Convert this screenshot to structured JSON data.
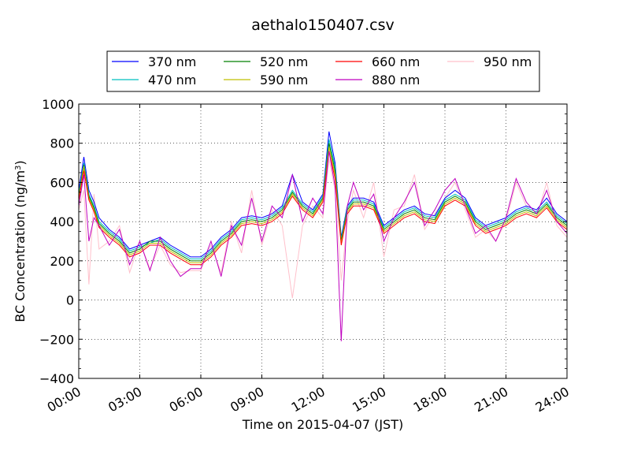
{
  "chart_data": {
    "type": "line",
    "title": "aethalo150407.csv",
    "xlabel": "Time on 2015-04-07 (JST)",
    "ylabel": "BC Concentration (ng/m",
    "ylabel_superscript": "3",
    "ylabel_suffix": ")",
    "xlim": [
      "00:00",
      "24:00"
    ],
    "ylim": [
      -400,
      1000
    ],
    "x_ticks": [
      "00:00",
      "03:00",
      "06:00",
      "09:00",
      "12:00",
      "15:00",
      "18:00",
      "21:00",
      "24:00"
    ],
    "y_ticks": [
      -400,
      -200,
      0,
      200,
      400,
      600,
      800,
      1000
    ],
    "y_tick_labels": [
      "−400",
      "−200",
      "0",
      "200",
      "400",
      "600",
      "800",
      "1000"
    ],
    "grid": true,
    "legend_placement": "top-center, above plot",
    "x_hours": [
      0,
      0.25,
      0.5,
      0.75,
      1.0,
      1.5,
      2.0,
      2.5,
      3.0,
      3.5,
      4.0,
      4.5,
      5.0,
      5.5,
      6.0,
      6.5,
      7.0,
      7.5,
      8.0,
      8.5,
      9.0,
      9.5,
      10.0,
      10.5,
      11.0,
      11.5,
      12.0,
      12.3,
      12.6,
      12.9,
      13.2,
      13.5,
      14.0,
      14.5,
      15.0,
      15.5,
      16.0,
      16.5,
      17.0,
      17.5,
      18.0,
      18.5,
      19.0,
      19.5,
      20.0,
      20.5,
      21.0,
      21.5,
      22.0,
      22.5,
      23.0,
      23.5,
      24.0
    ],
    "series": [
      {
        "name": "370 nm",
        "color": "#0000ff",
        "values": [
          560,
          730,
          560,
          500,
          420,
          360,
          320,
          260,
          280,
          300,
          320,
          280,
          250,
          220,
          220,
          260,
          320,
          360,
          420,
          430,
          420,
          440,
          480,
          640,
          500,
          460,
          540,
          860,
          700,
          320,
          480,
          520,
          520,
          500,
          380,
          420,
          460,
          480,
          440,
          430,
          520,
          560,
          520,
          420,
          380,
          400,
          420,
          460,
          480,
          460,
          520,
          440,
          400
        ]
      },
      {
        "name": "470 nm",
        "color": "#00bfbf",
        "values": [
          540,
          700,
          540,
          480,
          400,
          350,
          310,
          250,
          270,
          290,
          310,
          270,
          240,
          210,
          210,
          250,
          310,
          350,
          410,
          420,
          410,
          430,
          470,
          560,
          490,
          450,
          530,
          820,
          680,
          310,
          470,
          510,
          510,
          490,
          370,
          410,
          450,
          470,
          430,
          420,
          510,
          540,
          510,
          410,
          370,
          390,
          410,
          450,
          470,
          450,
          500,
          430,
          390
        ]
      },
      {
        "name": "520 nm",
        "color": "#008000",
        "values": [
          530,
          690,
          530,
          470,
          390,
          340,
          300,
          240,
          260,
          300,
          300,
          260,
          230,
          200,
          200,
          240,
          300,
          340,
          400,
          410,
          400,
          420,
          460,
          550,
          480,
          440,
          520,
          800,
          660,
          300,
          460,
          500,
          500,
          480,
          360,
          400,
          440,
          460,
          420,
          410,
          500,
          530,
          500,
          400,
          360,
          380,
          400,
          440,
          460,
          440,
          490,
          420,
          380
        ]
      },
      {
        "name": "590 nm",
        "color": "#bfbf00",
        "values": [
          520,
          680,
          520,
          460,
          380,
          330,
          290,
          230,
          250,
          290,
          290,
          250,
          220,
          190,
          190,
          230,
          290,
          330,
          390,
          400,
          390,
          410,
          450,
          540,
          470,
          430,
          510,
          780,
          640,
          290,
          450,
          490,
          490,
          470,
          350,
          390,
          430,
          450,
          410,
          400,
          490,
          520,
          490,
          390,
          350,
          370,
          390,
          430,
          450,
          430,
          480,
          410,
          370
        ]
      },
      {
        "name": "660 nm",
        "color": "#ff0000",
        "values": [
          510,
          660,
          510,
          450,
          370,
          320,
          280,
          220,
          240,
          280,
          280,
          240,
          210,
          180,
          180,
          220,
          280,
          320,
          380,
          390,
          380,
          400,
          440,
          530,
          460,
          420,
          500,
          760,
          620,
          280,
          440,
          480,
          480,
          460,
          340,
          380,
          420,
          440,
          400,
          390,
          480,
          510,
          480,
          380,
          340,
          360,
          380,
          420,
          440,
          420,
          470,
          400,
          360
        ]
      },
      {
        "name": "880 nm",
        "color": "#bf00bf",
        "values": [
          480,
          640,
          300,
          420,
          380,
          280,
          360,
          180,
          300,
          150,
          320,
          200,
          120,
          160,
          160,
          300,
          120,
          380,
          280,
          520,
          300,
          480,
          420,
          640,
          400,
          520,
          440,
          760,
          580,
          -210,
          480,
          600,
          460,
          540,
          300,
          420,
          500,
          600,
          380,
          460,
          560,
          620,
          480,
          340,
          380,
          300,
          420,
          620,
          500,
          440,
          560,
          400,
          340
        ]
      },
      {
        "name": "950 nm",
        "color": "#ffc0cb",
        "values": [
          460,
          560,
          80,
          540,
          260,
          300,
          380,
          140,
          300,
          160,
          280,
          180,
          140,
          150,
          150,
          280,
          140,
          400,
          240,
          560,
          280,
          460,
          380,
          10,
          380,
          480,
          420,
          720,
          560,
          100,
          400,
          560,
          420,
          600,
          220,
          460,
          480,
          640,
          360,
          440,
          520,
          600,
          460,
          320,
          360,
          300,
          400,
          600,
          480,
          420,
          600,
          380,
          320
        ]
      }
    ]
  }
}
